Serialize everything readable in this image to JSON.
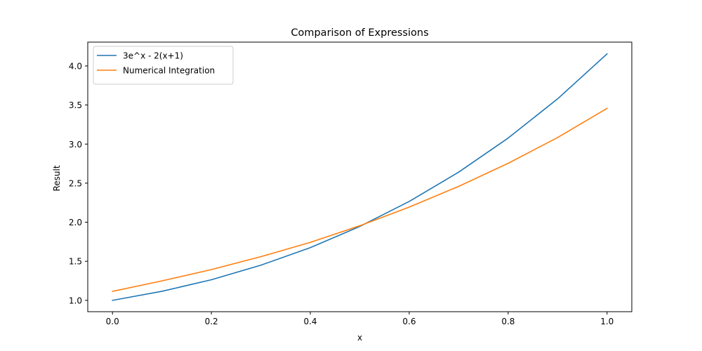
{
  "chart_data": {
    "type": "line",
    "title": "Comparison of Expressions",
    "xlabel": "x",
    "ylabel": "Result",
    "xlim": [
      -0.05,
      1.05
    ],
    "ylim": [
      0.855,
      4.305
    ],
    "xticks": [
      0.0,
      0.2,
      0.4,
      0.6,
      0.8,
      1.0
    ],
    "xtick_labels": [
      "0.0",
      "0.2",
      "0.4",
      "0.6",
      "0.8",
      "1.0"
    ],
    "yticks": [
      1.0,
      1.5,
      2.0,
      2.5,
      3.0,
      3.5,
      4.0
    ],
    "ytick_labels": [
      "1.0",
      "1.5",
      "2.0",
      "2.5",
      "3.0",
      "3.5",
      "4.0"
    ],
    "grid": false,
    "legend": "top-left",
    "x": [
      0.0,
      0.1,
      0.2,
      0.3,
      0.4,
      0.5,
      0.6,
      0.7,
      0.8,
      0.9,
      1.0
    ],
    "series": [
      {
        "name": "3e^x - 2(x+1)",
        "color": "#1f77b4",
        "values": [
          1.0,
          1.116,
          1.264,
          1.45,
          1.675,
          1.946,
          2.266,
          2.641,
          3.077,
          3.579,
          4.155
        ]
      },
      {
        "name": "Numerical Integration",
        "color": "#ff7f0e",
        "values": [
          1.115,
          1.249,
          1.394,
          1.559,
          1.742,
          1.955,
          2.194,
          2.459,
          2.754,
          3.084,
          3.457
        ]
      }
    ]
  }
}
